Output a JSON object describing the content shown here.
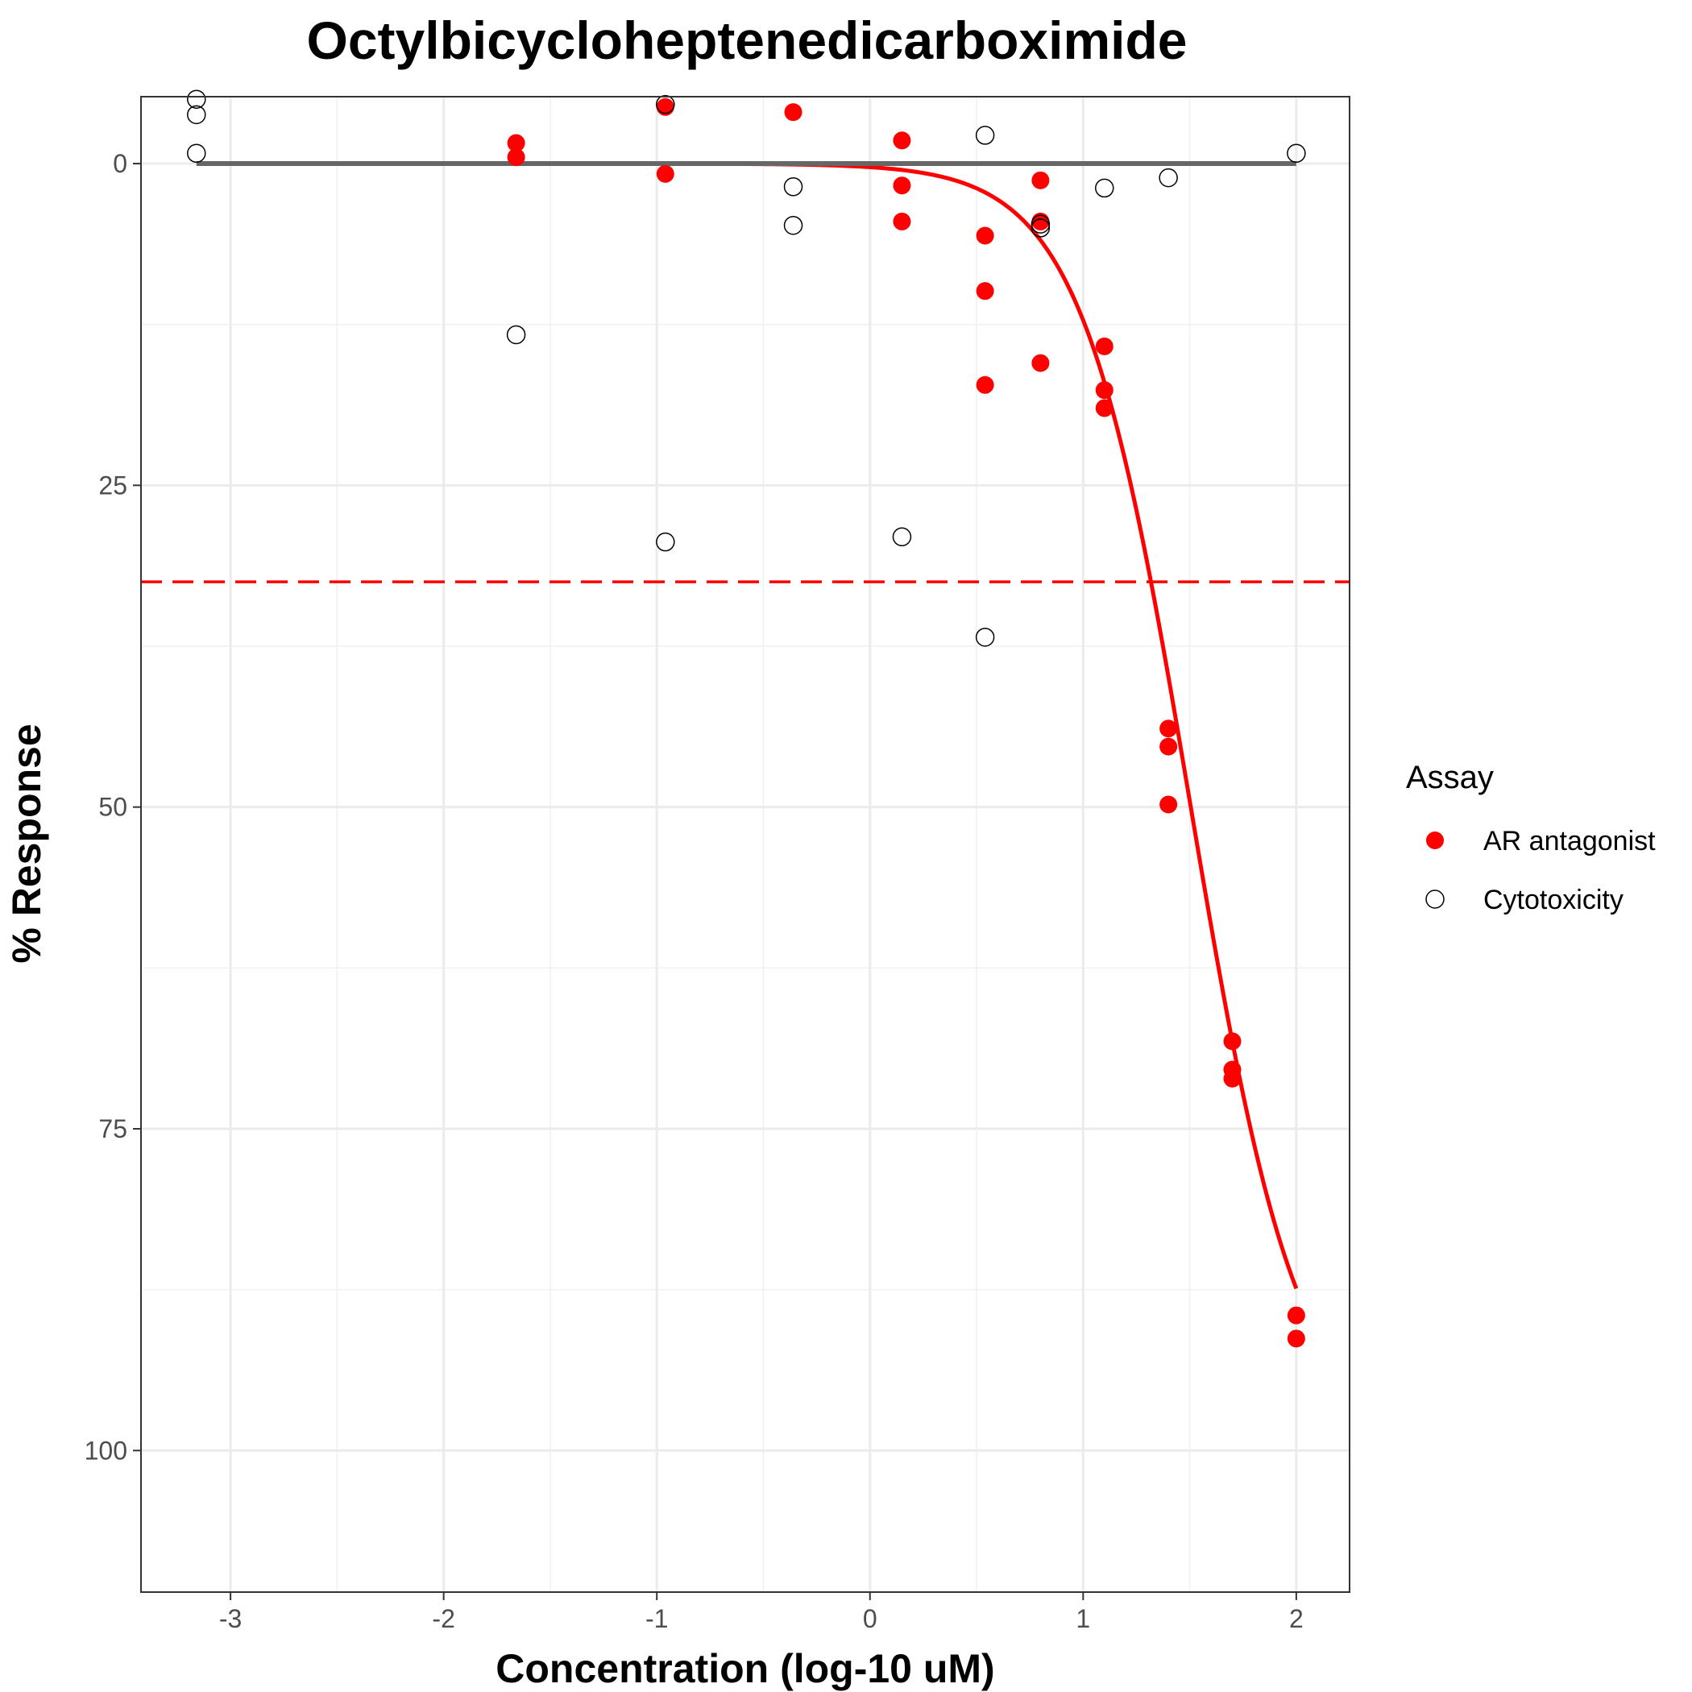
{
  "chart_data": {
    "type": "scatter",
    "title": "Octylbicycloheptenedicarboximide",
    "xlabel": "Concentration (log-10 uM)",
    "ylabel": "% Response",
    "xlim": [
      -3.42,
      2.25
    ],
    "ylim": [
      -5.2,
      111
    ],
    "y_reversed": true,
    "grid": true,
    "x_ticks": [
      -3,
      -2,
      -1,
      0,
      1,
      2
    ],
    "x_tick_labels": [
      "-3",
      "-2",
      "-1",
      "0",
      "1",
      "2"
    ],
    "y_ticks": [
      0,
      25,
      50,
      75,
      100
    ],
    "y_tick_labels": [
      "0",
      "25",
      "50",
      "75",
      "100"
    ],
    "legend": {
      "title": "Assay",
      "placement": "right",
      "entries": [
        "AR antagonist",
        "Cytotoxicity"
      ]
    },
    "series": [
      {
        "name": "AR antagonist",
        "marker": "filled-circle",
        "color": "#ff0000",
        "points": [
          [
            -1.66,
            -1.6
          ],
          [
            -1.66,
            -0.5
          ],
          [
            -0.96,
            -4.4
          ],
          [
            -0.96,
            0.8
          ],
          [
            -0.36,
            -4.0
          ],
          [
            0.15,
            -1.8
          ],
          [
            0.15,
            1.7
          ],
          [
            0.15,
            4.5
          ],
          [
            0.54,
            5.6
          ],
          [
            0.54,
            9.9
          ],
          [
            0.54,
            17.2
          ],
          [
            0.8,
            1.3
          ],
          [
            0.8,
            4.5
          ],
          [
            0.8,
            15.5
          ],
          [
            1.1,
            14.2
          ],
          [
            1.1,
            17.6
          ],
          [
            1.1,
            19.0
          ],
          [
            1.4,
            43.9
          ],
          [
            1.4,
            45.3
          ],
          [
            1.4,
            49.8
          ],
          [
            1.7,
            68.2
          ],
          [
            1.7,
            70.4
          ],
          [
            1.7,
            71.1
          ],
          [
            2.0,
            89.5
          ],
          [
            2.0,
            91.3
          ]
        ]
      },
      {
        "name": "Cytotoxicity",
        "marker": "open-circle",
        "color": "#000000",
        "points": [
          [
            -3.16,
            -5.0
          ],
          [
            -3.16,
            -3.8
          ],
          [
            -3.16,
            -0.8
          ],
          [
            -1.66,
            13.3
          ],
          [
            -0.96,
            -4.6
          ],
          [
            -0.96,
            29.4
          ],
          [
            -0.36,
            1.8
          ],
          [
            -0.36,
            4.8
          ],
          [
            0.15,
            29.0
          ],
          [
            0.54,
            -2.2
          ],
          [
            0.54,
            36.8
          ],
          [
            0.8,
            4.7
          ],
          [
            0.8,
            5.0
          ],
          [
            1.1,
            1.9
          ],
          [
            1.4,
            1.1
          ],
          [
            2.0,
            -0.8
          ]
        ]
      }
    ],
    "fit_curves": [
      {
        "series": "AR antagonist",
        "color": "#ff0000",
        "model": "hill",
        "top": 100,
        "bottom": 0,
        "log_ac50": 1.505,
        "hill_slope": 1.7,
        "x_range": [
          -0.58,
          2.0
        ]
      },
      {
        "series": "Cytotoxicity",
        "color": "#666666",
        "model": "constant",
        "y": 0,
        "x_range": [
          -3.16,
          2.0
        ]
      }
    ],
    "reference_lines": [
      {
        "orientation": "horizontal",
        "y": 32.5,
        "color": "#ff0000",
        "style": "dashed"
      }
    ]
  }
}
